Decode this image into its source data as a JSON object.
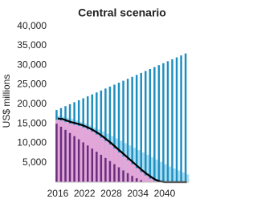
{
  "chart_data": {
    "type": "bar",
    "title": "Central scenario",
    "y_label": "US$ millions",
    "x": [
      2016,
      2017,
      2018,
      2019,
      2020,
      2021,
      2022,
      2023,
      2024,
      2025,
      2026,
      2027,
      2028,
      2029,
      2030,
      2031,
      2032,
      2033,
      2034,
      2035,
      2036,
      2037,
      2038,
      2039,
      2040,
      2041,
      2042,
      2043,
      2044,
      2045
    ],
    "xlim": [
      2015.5,
      2045.5
    ],
    "xticks": [
      2016,
      2022,
      2028,
      2034,
      2040
    ],
    "ylim": [
      0,
      41500
    ],
    "yticks": [
      {
        "value": 5000,
        "label": "5,000"
      },
      {
        "value": 10000,
        "label": "10,000"
      },
      {
        "value": 15000,
        "label": "15,000"
      },
      {
        "value": 20000,
        "label": "20,000"
      },
      {
        "value": 25000,
        "label": "25,000"
      },
      {
        "value": 30000,
        "label": "30,000"
      },
      {
        "value": 35000,
        "label": "35,000"
      },
      {
        "value": 40000,
        "label": "40,000"
      }
    ],
    "series": [
      {
        "color": "#a9ddf3",
        "width": "full",
        "values": [
          17000,
          16800,
          16500,
          16200,
          15800,
          15400,
          15000,
          14500,
          14000,
          13500,
          13000,
          12400,
          11800,
          11200,
          10600,
          10000,
          9400,
          8800,
          8200,
          7600,
          7000,
          6400,
          5800,
          5200,
          4600,
          4000,
          3500,
          3000,
          2500,
          2000
        ]
      },
      {
        "color": "#1f8fbf",
        "width": "thin",
        "values": [
          18500,
          19000,
          19500,
          20000,
          20500,
          21000,
          21500,
          22000,
          22500,
          23000,
          23500,
          24000,
          24500,
          25000,
          25500,
          26000,
          26500,
          27000,
          27500,
          28000,
          28500,
          29000,
          29500,
          30000,
          30500,
          31000,
          31500,
          32000,
          32500,
          33000
        ]
      },
      {
        "color": "#e3a6d9",
        "width": "full",
        "values": [
          16000,
          15800,
          15400,
          15000,
          14700,
          14400,
          14000,
          13500,
          12900,
          12200,
          11400,
          10500,
          9600,
          8600,
          7600,
          6600,
          5600,
          4600,
          3600,
          2600,
          1700,
          900,
          300,
          0,
          0,
          0,
          0,
          0,
          0,
          0
        ]
      },
      {
        "color": "#6b2d7e",
        "width": "thin",
        "values": [
          15000,
          14200,
          13400,
          12600,
          11800,
          11000,
          10200,
          9400,
          8600,
          7800,
          7000,
          6200,
          5400,
          4600,
          3800,
          3000,
          2300,
          1600,
          1000,
          500,
          100,
          0,
          0,
          0,
          0,
          0,
          0,
          0,
          0,
          0
        ]
      },
      {
        "color": "#000000",
        "type": "line",
        "values": [
          16300,
          16200,
          15800,
          15400,
          15100,
          14800,
          14400,
          13900,
          13300,
          12600,
          11800,
          10900,
          10000,
          9000,
          8000,
          7000,
          6000,
          5000,
          4000,
          3000,
          2100,
          1300,
          600,
          150,
          0,
          0,
          0,
          0,
          0,
          0
        ]
      }
    ]
  }
}
